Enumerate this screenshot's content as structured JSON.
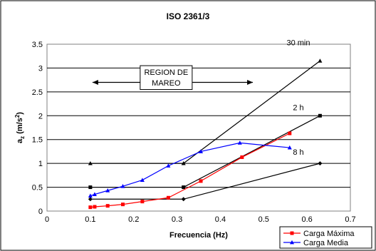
{
  "chart_data": {
    "type": "line",
    "title": "ISO 2361/3",
    "xlabel": "Frecuencia (Hz)",
    "ylabel": {
      "base": "a",
      "sub": "z",
      "unit_open": " (m/s",
      "sup": "2",
      "unit_close": ")"
    },
    "xlim": [
      0.0,
      0.7
    ],
    "ylim": [
      0.0,
      3.5
    ],
    "x_ticks": [
      "0",
      "0.1",
      "0.2",
      "0.3",
      "0.4",
      "0.5",
      "0.6",
      "0.7"
    ],
    "y_ticks": [
      "0",
      "0.5",
      "1",
      "1.5",
      "2",
      "2.5",
      "3",
      "3.5"
    ],
    "grid": "horizontal",
    "legend_position": "bottom-right",
    "reference_lines": [
      {
        "label": "30 min",
        "color": "#000000",
        "marker": "triangle",
        "x": [
          0.1,
          0.315,
          0.63
        ],
        "y": [
          1.0,
          1.0,
          3.15
        ]
      },
      {
        "label": "2 h",
        "color": "#000000",
        "marker": "square",
        "x": [
          0.1,
          0.315,
          0.63
        ],
        "y": [
          0.5,
          0.5,
          2.0
        ]
      },
      {
        "label": "8 h",
        "color": "#000000",
        "marker": "diamond",
        "x": [
          0.1,
          0.315,
          0.63
        ],
        "y": [
          0.25,
          0.25,
          1.0
        ]
      }
    ],
    "series": [
      {
        "name": "Carga Máxima",
        "color": "#ff0000",
        "marker": "square",
        "x": [
          0.1,
          0.11,
          0.14,
          0.175,
          0.22,
          0.28,
          0.355,
          0.45,
          0.56
        ],
        "y": [
          0.08,
          0.09,
          0.11,
          0.14,
          0.2,
          0.28,
          0.63,
          1.13,
          1.63
        ]
      },
      {
        "name": "Carga Media",
        "color": "#0000ff",
        "marker": "triangle",
        "x": [
          0.1,
          0.11,
          0.14,
          0.175,
          0.22,
          0.28,
          0.355,
          0.445,
          0.56
        ],
        "y": [
          0.32,
          0.35,
          0.43,
          0.52,
          0.65,
          0.95,
          1.25,
          1.43,
          1.33
        ]
      }
    ],
    "annotations": [
      {
        "text": "REGION DE",
        "role": "region-label-line1"
      },
      {
        "text": "MAREO",
        "role": "region-label-line2"
      }
    ]
  }
}
